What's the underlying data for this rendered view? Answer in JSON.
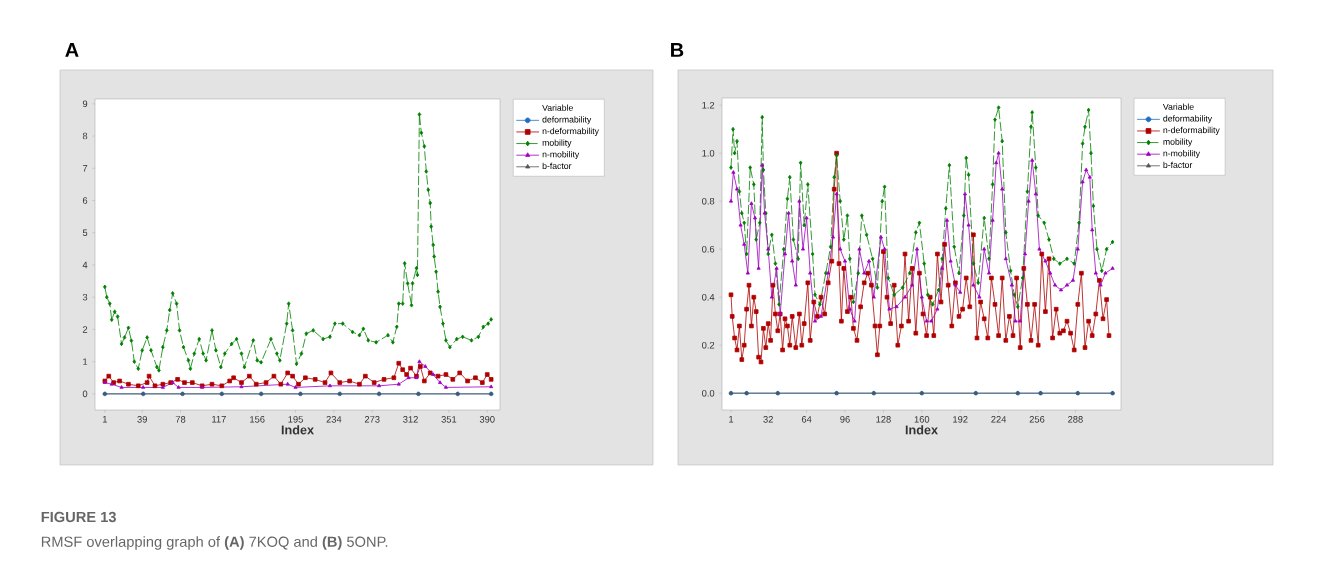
{
  "chart_data": [
    {
      "type": "line",
      "title": "A",
      "xlabel": "Index",
      "legend_title": "Variable",
      "legend": "right",
      "xlim": [
        -9,
        403
      ],
      "ylim": [
        -0.5,
        9.15
      ],
      "xticks": [
        1,
        39,
        78,
        117,
        156,
        195,
        234,
        273,
        312,
        351,
        390
      ],
      "yticks": [
        0,
        1,
        2,
        3,
        4,
        5,
        6,
        7,
        8,
        9
      ],
      "annotations": [
        "FIGURE 13",
        "RMSF overlapping graph of **(A)** 7KOQ and **(B)** 5ONP."
      ],
      "series": [
        {
          "name": "deformability",
          "color": "#1f6fc0",
          "marker": "circle",
          "x": [
            1,
            40,
            80,
            120,
            160,
            200,
            240,
            280,
            320,
            360,
            394
          ],
          "values": [
            0,
            0,
            0,
            0,
            0,
            0,
            0,
            0,
            0,
            0,
            0
          ]
        },
        {
          "name": "n-deformability",
          "color": "#b00000",
          "marker": "square",
          "x": [
            1,
            5,
            10,
            16,
            25,
            35,
            44,
            46,
            52,
            60,
            68,
            75,
            82,
            90,
            100,
            110,
            120,
            128,
            132,
            140,
            148,
            155,
            165,
            173,
            180,
            187,
            192,
            198,
            205,
            215,
            225,
            231,
            240,
            250,
            260,
            266,
            275,
            285,
            295,
            300,
            304,
            308,
            312,
            318,
            322,
            326,
            332,
            340,
            348,
            355,
            362,
            370,
            378,
            385,
            390,
            394
          ],
          "values": [
            0.4,
            0.55,
            0.35,
            0.4,
            0.3,
            0.25,
            0.35,
            0.55,
            0.25,
            0.3,
            0.35,
            0.45,
            0.35,
            0.35,
            0.25,
            0.3,
            0.25,
            0.4,
            0.5,
            0.35,
            0.55,
            0.3,
            0.35,
            0.55,
            0.3,
            0.65,
            0.55,
            0.3,
            0.5,
            0.45,
            0.35,
            0.65,
            0.35,
            0.4,
            0.3,
            0.55,
            0.35,
            0.45,
            0.5,
            0.95,
            0.75,
            0.6,
            0.8,
            0.55,
            0.85,
            0.4,
            0.65,
            0.55,
            0.6,
            0.45,
            0.65,
            0.4,
            0.5,
            0.35,
            0.6,
            0.45
          ]
        },
        {
          "name": "mobility",
          "color": "#008000",
          "marker": "diamond",
          "line_style": "dashed",
          "x": [
            1,
            3,
            6,
            8,
            11,
            14,
            18,
            21,
            25,
            28,
            31,
            35,
            39,
            44,
            48,
            54,
            56,
            60,
            64,
            67,
            70,
            74,
            77,
            81,
            86,
            88,
            92,
            97,
            101,
            104,
            110,
            114,
            119,
            123,
            130,
            135,
            140,
            143,
            152,
            156,
            160,
            170,
            176,
            179,
            186,
            188,
            192,
            196,
            201,
            206,
            213,
            223,
            230,
            235,
            243,
            253,
            260,
            264,
            269,
            277,
            289,
            294,
            298,
            300,
            304,
            306,
            309,
            313,
            314,
            318,
            319,
            321,
            323,
            326,
            328,
            330,
            332,
            333,
            335,
            336,
            338,
            340,
            342,
            345,
            348,
            352,
            359,
            365,
            374,
            381,
            386,
            391,
            394
          ],
          "values": [
            3.32,
            3.0,
            2.8,
            2.3,
            2.55,
            2.4,
            1.55,
            1.75,
            2.05,
            1.65,
            1.0,
            0.78,
            1.35,
            1.75,
            1.35,
            0.83,
            0.73,
            1.45,
            1.97,
            2.6,
            3.12,
            2.8,
            1.97,
            1.45,
            1.04,
            0.78,
            1.25,
            1.7,
            1.25,
            1.04,
            1.97,
            1.35,
            0.83,
            1.25,
            1.55,
            1.7,
            1.25,
            0.83,
            1.66,
            1.04,
            0.98,
            1.7,
            1.25,
            1.04,
            2.18,
            2.8,
            1.97,
            0.93,
            1.25,
            1.87,
            1.97,
            1.7,
            1.77,
            2.18,
            2.18,
            1.92,
            1.82,
            2.02,
            1.66,
            1.6,
            1.82,
            1.6,
            2.08,
            2.8,
            2.8,
            4.05,
            3.43,
            2.75,
            3.43,
            3.9,
            3.69,
            8.67,
            8.1,
            7.68,
            6.9,
            6.33,
            5.92,
            5.19,
            4.62,
            4.26,
            3.79,
            3.17,
            2.7,
            2.18,
            1.66,
            1.45,
            1.7,
            1.77,
            1.66,
            1.77,
            2.08,
            2.18,
            2.31
          ]
        },
        {
          "name": "n-mobility",
          "color": "#a000c0",
          "marker": "triangle",
          "x": [
            1,
            8,
            18,
            40,
            60,
            70,
            76,
            100,
            140,
            187,
            195,
            230,
            280,
            300,
            310,
            318,
            321,
            327,
            335,
            342,
            348,
            394
          ],
          "values": [
            0.35,
            0.3,
            0.2,
            0.2,
            0.2,
            0.35,
            0.2,
            0.2,
            0.22,
            0.3,
            0.2,
            0.25,
            0.25,
            0.3,
            0.5,
            0.5,
            1.0,
            0.85,
            0.6,
            0.35,
            0.2,
            0.22
          ]
        },
        {
          "name": "b-factor",
          "color": "#555555",
          "marker": "triangle",
          "x": [
            1,
            40,
            80,
            120,
            160,
            200,
            240,
            280,
            320,
            360,
            394
          ],
          "values": [
            0,
            0,
            0,
            0,
            0,
            0,
            0,
            0,
            0,
            0,
            0
          ]
        }
      ]
    },
    {
      "type": "line",
      "title": "B",
      "xlabel": "Index",
      "legend_title": "Variable",
      "legend": "right",
      "xlim": [
        -6.5,
        326
      ],
      "ylim": [
        -0.07,
        1.23
      ],
      "xticks": [
        1,
        32,
        64,
        96,
        128,
        160,
        192,
        224,
        256,
        288
      ],
      "yticks": [
        {
          "value": 0,
          "label": "0.0"
        },
        0.2,
        0.4,
        0.6,
        0.8,
        {
          "value": 1,
          "label": "1.0"
        },
        1.2
      ],
      "series": [
        {
          "name": "deformability",
          "color": "#1f6fc0",
          "marker": "circle",
          "x": [
            1,
            14,
            40,
            89,
            120,
            160,
            205,
            240,
            259,
            290,
            319
          ],
          "values": [
            0,
            0,
            0,
            0,
            0,
            0,
            0,
            0,
            0,
            0,
            0
          ]
        },
        {
          "name": "n-deformability",
          "color": "#b00000",
          "marker": "square",
          "x": [
            1,
            2,
            4,
            6,
            8,
            10,
            12,
            14,
            16,
            18,
            20,
            22,
            24,
            26,
            28,
            30,
            32,
            34,
            36,
            38,
            40,
            42,
            44,
            46,
            48,
            50,
            52,
            55,
            58,
            60,
            62,
            65,
            67,
            70,
            73,
            76,
            79,
            82,
            85,
            87,
            89,
            91,
            93,
            95,
            98,
            101,
            103,
            106,
            109,
            112,
            115,
            118,
            121,
            123,
            125,
            128,
            131,
            134,
            137,
            140,
            143,
            146,
            149,
            152,
            155,
            158,
            161,
            164,
            167,
            170,
            173,
            176,
            179,
            182,
            185,
            188,
            191,
            194,
            197,
            200,
            203,
            206,
            209,
            212,
            215,
            218,
            221,
            224,
            227,
            230,
            233,
            236,
            239,
            242,
            245,
            248,
            251,
            254,
            257,
            260,
            263,
            266,
            269,
            272,
            275,
            278,
            281,
            284,
            287,
            290,
            293,
            296,
            299,
            302,
            305,
            308,
            311,
            314,
            316
          ],
          "values": [
            0.41,
            0.32,
            0.23,
            0.18,
            0.28,
            0.14,
            0.2,
            0.35,
            0.45,
            0.28,
            0.4,
            0.34,
            0.15,
            0.13,
            0.27,
            0.19,
            0.29,
            0.22,
            0.45,
            0.33,
            0.26,
            0.33,
            0.18,
            0.31,
            0.28,
            0.2,
            0.32,
            0.19,
            0.33,
            0.2,
            0.29,
            0.46,
            0.22,
            0.38,
            0.32,
            0.4,
            0.33,
            0.46,
            0.55,
            0.85,
            1.0,
            0.54,
            0.3,
            0.52,
            0.34,
            0.4,
            0.27,
            0.22,
            0.36,
            0.46,
            0.5,
            0.45,
            0.28,
            0.16,
            0.28,
            0.59,
            0.4,
            0.29,
            0.45,
            0.2,
            0.28,
            0.58,
            0.3,
            0.52,
            0.25,
            0.5,
            0.33,
            0.24,
            0.4,
            0.24,
            0.58,
            0.38,
            0.62,
            0.45,
            0.28,
            0.46,
            0.32,
            0.35,
            0.48,
            0.36,
            0.66,
            0.23,
            0.38,
            0.31,
            0.23,
            0.48,
            0.37,
            0.24,
            0.48,
            0.22,
            0.32,
            0.24,
            0.48,
            0.19,
            0.52,
            0.37,
            0.22,
            0.37,
            0.2,
            0.58,
            0.34,
            0.56,
            0.23,
            0.35,
            0.25,
            0.26,
            0.3,
            0.25,
            0.18,
            0.37,
            0.5,
            0.19,
            0.3,
            0.24,
            0.33,
            0.47,
            0.31,
            0.39,
            0.24
          ]
        },
        {
          "name": "mobility",
          "color": "#008000",
          "marker": "diamond",
          "line_style": "dashed",
          "x": [
            1,
            2.7,
            4,
            6,
            8,
            10,
            12,
            14,
            17,
            20,
            22,
            25,
            27,
            28,
            30,
            32,
            35,
            38,
            41,
            45,
            48,
            50,
            53,
            57,
            59,
            62,
            65,
            69,
            71,
            75,
            80,
            84,
            87,
            89,
            92,
            95,
            98,
            100,
            103,
            107,
            110,
            114,
            119,
            123,
            127,
            129,
            132,
            137,
            144,
            150,
            155,
            158,
            162,
            165,
            169,
            174,
            177,
            180,
            183,
            187,
            191,
            195,
            197,
            199,
            203,
            207,
            212,
            216,
            219,
            221,
            224,
            227,
            230,
            234,
            237,
            240,
            244,
            248,
            251,
            252,
            255,
            257,
            262,
            266,
            270,
            275,
            281,
            287,
            291,
            294,
            296,
            299,
            301,
            303,
            306,
            310,
            314,
            319
          ],
          "values": [
            0.94,
            1.1,
            1.0,
            1.05,
            0.84,
            0.75,
            0.71,
            0.58,
            0.94,
            0.87,
            0.64,
            0.71,
            1.15,
            0.93,
            0.75,
            0.58,
            0.66,
            0.54,
            0.37,
            0.6,
            0.81,
            0.9,
            0.64,
            0.56,
            0.96,
            0.7,
            0.87,
            0.58,
            0.41,
            0.37,
            0.5,
            0.61,
            0.9,
            0.99,
            0.8,
            0.64,
            0.74,
            0.56,
            0.38,
            0.5,
            0.74,
            0.66,
            0.56,
            0.44,
            0.8,
            0.86,
            0.48,
            0.41,
            0.44,
            0.5,
            0.67,
            0.71,
            0.54,
            0.41,
            0.37,
            0.43,
            0.56,
            0.77,
            0.95,
            0.61,
            0.5,
            0.74,
            0.98,
            0.91,
            0.54,
            0.46,
            0.73,
            0.56,
            0.87,
            1.14,
            1.19,
            1.05,
            0.67,
            0.51,
            0.41,
            0.36,
            0.48,
            0.84,
            1.11,
            1.17,
            0.94,
            0.74,
            0.71,
            0.64,
            0.56,
            0.54,
            0.56,
            0.54,
            0.71,
            1.04,
            1.11,
            1.18,
            1.0,
            0.78,
            0.6,
            0.51,
            0.6,
            0.63
          ]
        },
        {
          "name": "n-mobility",
          "color": "#a000c0",
          "marker": "triangle",
          "x": [
            1,
            3,
            6,
            9,
            12,
            15,
            18,
            21,
            24,
            27,
            29,
            32,
            35,
            39,
            42,
            46,
            49,
            52,
            55,
            58,
            61,
            64,
            67,
            71,
            76,
            82,
            86,
            89,
            92,
            96,
            100,
            104,
            108,
            112,
            116,
            120,
            126,
            129,
            133,
            139,
            146,
            152,
            156,
            160,
            164,
            168,
            173,
            177,
            181,
            184,
            188,
            192,
            196,
            199,
            203,
            208,
            212,
            216,
            219,
            222,
            224,
            227,
            230,
            235,
            238,
            242,
            246,
            249,
            252,
            255,
            258,
            263,
            267,
            271,
            276,
            281,
            286,
            290,
            294,
            297,
            300,
            302,
            305,
            309,
            313,
            319
          ],
          "values": [
            0.8,
            0.92,
            0.85,
            0.7,
            0.62,
            0.5,
            0.79,
            0.73,
            0.52,
            0.95,
            0.75,
            0.6,
            0.4,
            0.52,
            0.33,
            0.58,
            0.75,
            0.55,
            0.45,
            0.8,
            0.6,
            0.73,
            0.5,
            0.3,
            0.32,
            0.5,
            0.65,
            0.83,
            0.6,
            0.55,
            0.35,
            0.3,
            0.6,
            0.5,
            0.55,
            0.4,
            0.65,
            0.6,
            0.35,
            0.36,
            0.4,
            0.45,
            0.6,
            0.4,
            0.3,
            0.3,
            0.35,
            0.52,
            0.72,
            0.55,
            0.45,
            0.42,
            0.83,
            0.7,
            0.45,
            0.4,
            0.6,
            0.5,
            0.72,
            0.96,
            1.0,
            0.85,
            0.56,
            0.45,
            0.3,
            0.3,
            0.58,
            0.8,
            0.97,
            0.83,
            0.6,
            0.55,
            0.5,
            0.45,
            0.43,
            0.45,
            0.47,
            0.6,
            0.88,
            0.93,
            0.9,
            0.68,
            0.5,
            0.45,
            0.5,
            0.52
          ]
        },
        {
          "name": "b-factor",
          "color": "#555555",
          "marker": "triangle",
          "x": [
            1,
            14,
            40,
            89,
            120,
            160,
            205,
            240,
            259,
            290,
            319
          ],
          "values": [
            0,
            0,
            0,
            0,
            0,
            0,
            0,
            0,
            0,
            0,
            0
          ]
        }
      ]
    }
  ]
}
